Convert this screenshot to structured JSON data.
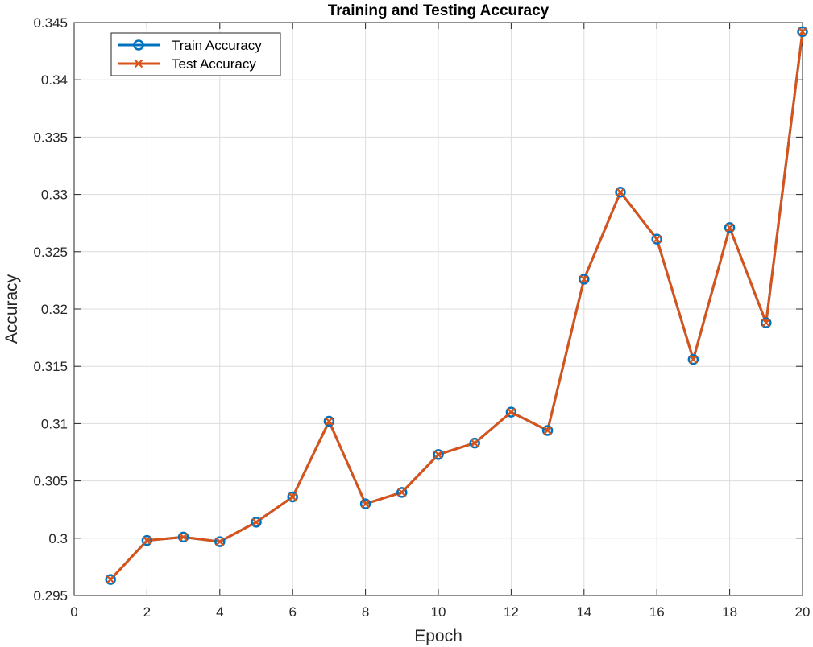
{
  "chart_data": {
    "type": "line",
    "title": "Training and Testing Accuracy",
    "xlabel": "Epoch",
    "ylabel": "Accuracy",
    "xlim": [
      0,
      20
    ],
    "ylim": [
      0.295,
      0.345
    ],
    "xticks": [
      "0",
      "2",
      "4",
      "6",
      "8",
      "10",
      "12",
      "14",
      "16",
      "18",
      "20"
    ],
    "yticks": [
      "0.295",
      "0.3",
      "0.305",
      "0.31",
      "0.315",
      "0.32",
      "0.325",
      "0.33",
      "0.335",
      "0.34",
      "0.345"
    ],
    "grid": true,
    "legend_position": "top-left",
    "x": [
      1,
      2,
      3,
      4,
      5,
      6,
      7,
      8,
      9,
      10,
      11,
      12,
      13,
      14,
      15,
      16,
      17,
      18,
      19,
      20
    ],
    "series": [
      {
        "name": "Train Accuracy",
        "marker": "circle",
        "color": "#0072BD",
        "values": [
          0.2964,
          0.2998,
          0.3001,
          0.2997,
          0.3014,
          0.3036,
          0.3102,
          0.303,
          0.304,
          0.3073,
          0.3083,
          0.311,
          0.3094,
          0.3226,
          0.3302,
          0.3261,
          0.3156,
          0.3271,
          0.3188,
          0.3442
        ]
      },
      {
        "name": "Test Accuracy",
        "marker": "x",
        "color": "#D95319",
        "values": [
          0.2964,
          0.2998,
          0.3001,
          0.2997,
          0.3014,
          0.3036,
          0.3102,
          0.303,
          0.304,
          0.3073,
          0.3083,
          0.311,
          0.3094,
          0.3226,
          0.3302,
          0.3261,
          0.3156,
          0.3271,
          0.3188,
          0.3442
        ]
      }
    ]
  }
}
